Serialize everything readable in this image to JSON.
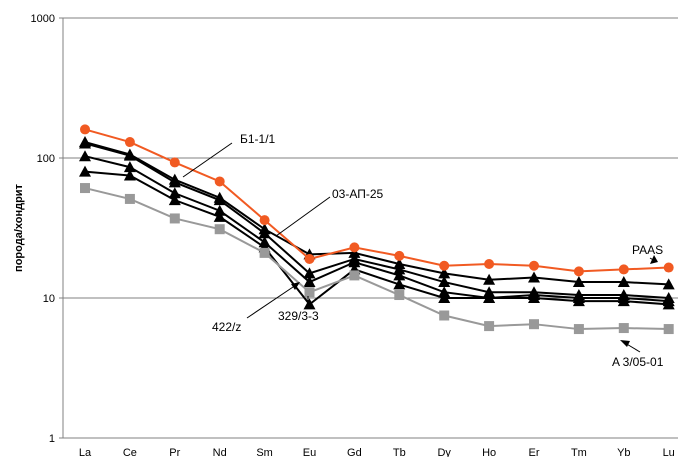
{
  "chart_data": {
    "type": "line",
    "ylabel": "порода/хондрит",
    "yscale": "log",
    "ylim": [
      1,
      1000
    ],
    "yticks": [
      "1",
      "10",
      "100",
      "1000"
    ],
    "grid": "horizontal",
    "legend": "none",
    "categories": [
      "La",
      "Ce",
      "Pr",
      "Nd",
      "Sm",
      "Eu",
      "Gd",
      "Tb",
      "Dy",
      "Ho",
      "Er",
      "Tm",
      "Yb",
      "Lu"
    ],
    "series": [
      {
        "name": "PAAS",
        "color": "#f15a22",
        "marker": "circle",
        "values": [
          160,
          130,
          93,
          68,
          36,
          19,
          23,
          20,
          17,
          17.5,
          17,
          15.5,
          16,
          16.5
        ]
      },
      {
        "color": "#000000",
        "marker": "triangle",
        "values": [
          130,
          106,
          70,
          52,
          31,
          20.5,
          21,
          17.5,
          15,
          13.5,
          14,
          13,
          13,
          12.5
        ]
      },
      {
        "color": "#000000",
        "marker": "triangle",
        "values": [
          127,
          104,
          67,
          50,
          29,
          15,
          19,
          16,
          13,
          11,
          11,
          10.5,
          10.5,
          10
        ]
      },
      {
        "color": "#000000",
        "marker": "triangle",
        "values": [
          103,
          86,
          56,
          42,
          25,
          13,
          18,
          14.5,
          11,
          10,
          10.5,
          10,
          10,
          9.5
        ]
      },
      {
        "color": "#000000",
        "marker": "triangle",
        "values": [
          80,
          75,
          50,
          38,
          23,
          9,
          16,
          12.5,
          10,
          10,
          10,
          9.5,
          9.5,
          9
        ]
      },
      {
        "color": "#999999",
        "marker": "square",
        "values": [
          61,
          51,
          37,
          31,
          21,
          11,
          14.5,
          10.5,
          7.5,
          6.3,
          6.5,
          6,
          6.1,
          6
        ]
      }
    ],
    "annotations": [
      "Б1-1/1",
      "03-АП-25",
      "422/z",
      "329/3-3",
      "PAAS",
      "A 3/05-01"
    ]
  }
}
